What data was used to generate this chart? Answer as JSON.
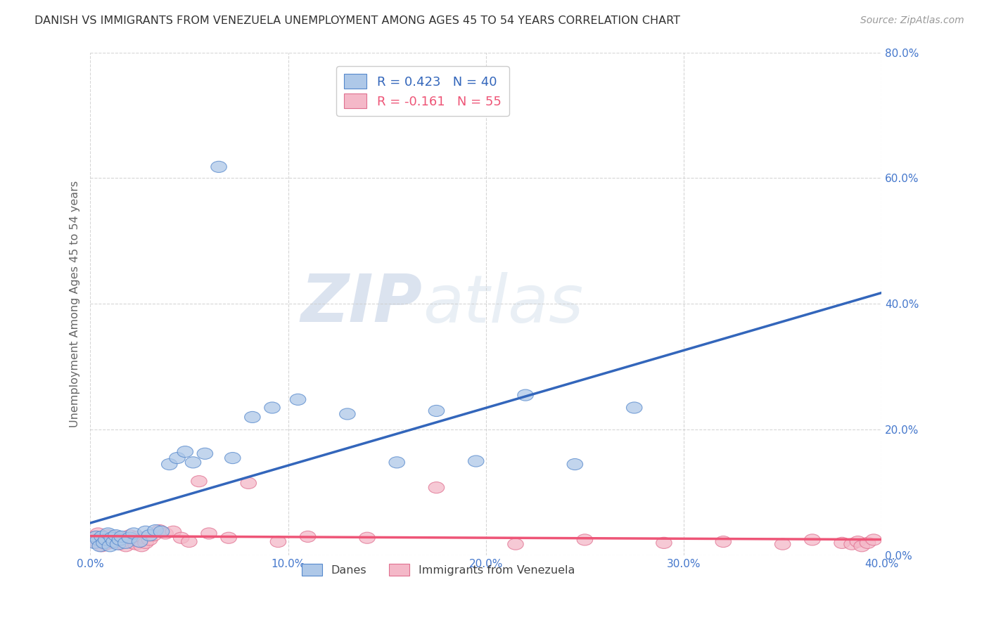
{
  "title": "DANISH VS IMMIGRANTS FROM VENEZUELA UNEMPLOYMENT AMONG AGES 45 TO 54 YEARS CORRELATION CHART",
  "source": "Source: ZipAtlas.com",
  "ylabel": "Unemployment Among Ages 45 to 54 years",
  "xlim": [
    0.0,
    0.4
  ],
  "ylim": [
    0.0,
    0.8
  ],
  "xticks": [
    0.0,
    0.1,
    0.2,
    0.3,
    0.4
  ],
  "yticks": [
    0.0,
    0.2,
    0.4,
    0.6,
    0.8
  ],
  "blue_R": 0.423,
  "blue_N": 40,
  "pink_R": -0.161,
  "pink_N": 55,
  "blue_color": "#aec8e8",
  "pink_color": "#f4b8c8",
  "blue_edge_color": "#5588cc",
  "pink_edge_color": "#e07090",
  "blue_line_color": "#3366bb",
  "pink_line_color": "#ee5577",
  "tick_label_color": "#4477cc",
  "blue_scatter_x": [
    0.002,
    0.003,
    0.004,
    0.005,
    0.006,
    0.007,
    0.008,
    0.009,
    0.01,
    0.011,
    0.012,
    0.013,
    0.014,
    0.015,
    0.016,
    0.018,
    0.02,
    0.022,
    0.025,
    0.028,
    0.03,
    0.033,
    0.036,
    0.04,
    0.044,
    0.048,
    0.052,
    0.058,
    0.065,
    0.072,
    0.082,
    0.092,
    0.105,
    0.13,
    0.155,
    0.175,
    0.195,
    0.22,
    0.245,
    0.275
  ],
  "blue_scatter_y": [
    0.02,
    0.03,
    0.025,
    0.015,
    0.03,
    0.02,
    0.025,
    0.035,
    0.015,
    0.028,
    0.022,
    0.032,
    0.018,
    0.025,
    0.03,
    0.02,
    0.028,
    0.035,
    0.022,
    0.038,
    0.032,
    0.04,
    0.038,
    0.145,
    0.155,
    0.165,
    0.148,
    0.162,
    0.618,
    0.155,
    0.22,
    0.235,
    0.248,
    0.225,
    0.148,
    0.23,
    0.15,
    0.255,
    0.145,
    0.235
  ],
  "pink_scatter_x": [
    0.001,
    0.002,
    0.003,
    0.004,
    0.005,
    0.006,
    0.007,
    0.008,
    0.009,
    0.01,
    0.011,
    0.012,
    0.013,
    0.014,
    0.015,
    0.016,
    0.017,
    0.018,
    0.019,
    0.02,
    0.021,
    0.022,
    0.023,
    0.024,
    0.025,
    0.026,
    0.027,
    0.028,
    0.03,
    0.032,
    0.035,
    0.038,
    0.042,
    0.046,
    0.05,
    0.055,
    0.06,
    0.07,
    0.08,
    0.095,
    0.11,
    0.14,
    0.175,
    0.215,
    0.25,
    0.29,
    0.32,
    0.35,
    0.365,
    0.38,
    0.385,
    0.388,
    0.39,
    0.393,
    0.396
  ],
  "pink_scatter_y": [
    0.025,
    0.03,
    0.02,
    0.035,
    0.025,
    0.015,
    0.028,
    0.018,
    0.032,
    0.022,
    0.026,
    0.02,
    0.03,
    0.024,
    0.018,
    0.028,
    0.022,
    0.015,
    0.025,
    0.032,
    0.02,
    0.026,
    0.018,
    0.03,
    0.022,
    0.015,
    0.028,
    0.02,
    0.025,
    0.032,
    0.04,
    0.035,
    0.038,
    0.028,
    0.022,
    0.118,
    0.035,
    0.028,
    0.115,
    0.022,
    0.03,
    0.028,
    0.108,
    0.018,
    0.025,
    0.02,
    0.022,
    0.018,
    0.025,
    0.02,
    0.018,
    0.022,
    0.015,
    0.02,
    0.025
  ],
  "watermark_zip": "ZIP",
  "watermark_atlas": "atlas",
  "background_color": "#ffffff",
  "grid_color": "#cccccc",
  "legend_blue_label": "R = 0.423   N = 40",
  "legend_pink_label": "R = -0.161   N = 55",
  "bottom_legend_blue": "Danes",
  "bottom_legend_pink": "Immigrants from Venezuela"
}
